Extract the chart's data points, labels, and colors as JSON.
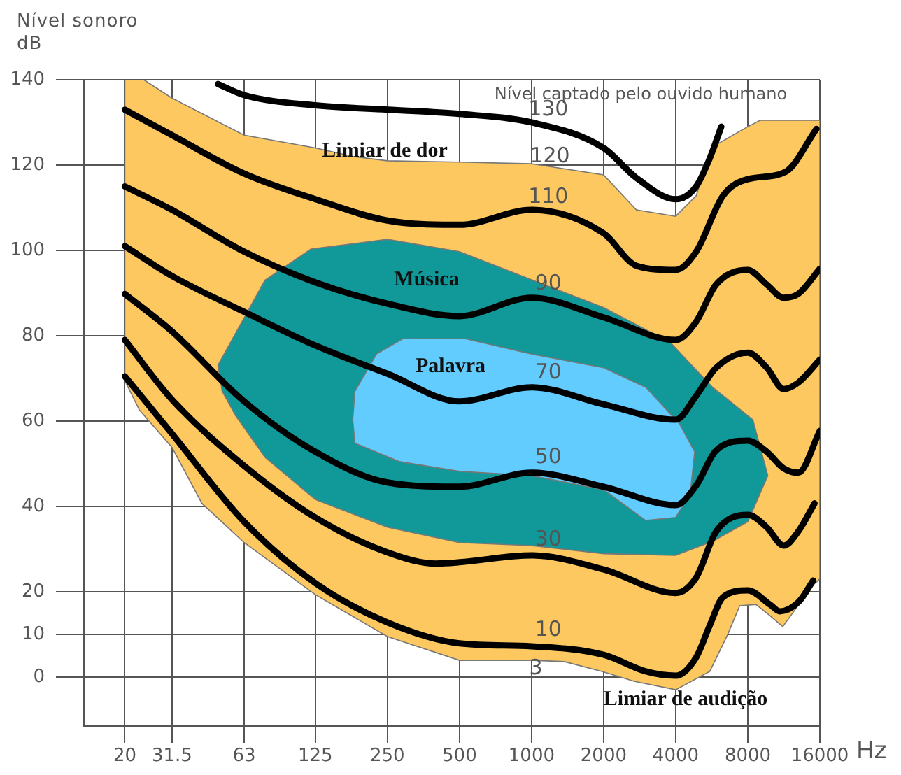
{
  "chart_data": {
    "type": "line",
    "xlabel": "Hz",
    "ylabel": "Nível sonoro dB",
    "log": "x",
    "grid": true,
    "legend": false,
    "xlim": [
      13.5,
      16000
    ],
    "xticks": [
      20,
      31.5,
      63,
      125,
      250,
      500,
      1000,
      2000,
      4000,
      8000,
      16000
    ],
    "ylim": [
      -11.5,
      140
    ],
    "yticks": [
      0,
      10,
      20,
      40,
      60,
      80,
      100,
      120,
      140
    ],
    "series": [
      {
        "type": "area",
        "color": "#fec861",
        "x": [
          20,
          24,
          31.5,
          63,
          125,
          180,
          250,
          500,
          1000,
          2000,
          2740,
          4000,
          4870,
          5350,
          6000,
          8000,
          9000,
          16000,
          16000,
          15000,
          11200,
          9900,
          8650,
          7400,
          6600,
          5550,
          4000,
          2680,
          1970,
          1370,
          1000,
          500,
          250,
          125,
          63,
          42,
          31.5,
          23,
          20,
          20
        ],
        "values": [
          140,
          140,
          135.7,
          127,
          124,
          122,
          121,
          120.7,
          120.3,
          117.7,
          109.5,
          108,
          112.8,
          120,
          125,
          129,
          130.5,
          130.5,
          23,
          21.6,
          11.8,
          14.4,
          17,
          16.7,
          10,
          1.3,
          -3,
          -1,
          1.3,
          3.6,
          3.9,
          3.9,
          9.5,
          19.3,
          31.5,
          40.7,
          53.8,
          62.6,
          69.5,
          140
        ]
      },
      {
        "type": "area",
        "color": "#11999a",
        "x": [
          49,
          77,
          120,
          250,
          500,
          1000,
          2000,
          3800,
          5700,
          8400,
          9700,
          8000,
          5700,
          4000,
          2000,
          1000,
          500,
          250,
          125,
          77,
          58,
          51,
          49
        ],
        "values": [
          73.1,
          93,
          100.3,
          102.6,
          99.7,
          93.1,
          86.6,
          78.4,
          67.9,
          60.3,
          47.2,
          36.4,
          31.8,
          28.5,
          28.9,
          30.8,
          31.5,
          35.1,
          41.6,
          51.5,
          61.3,
          67,
          73.1
        ]
      },
      {
        "type": "area",
        "color": "#63ccfe",
        "x": [
          179,
          183,
          225,
          290,
          530,
          1000,
          2000,
          3000,
          4150,
          4800,
          4600,
          4000,
          3000,
          2000,
          1000,
          500,
          280,
          183,
          179
        ],
        "values": [
          60.3,
          67,
          75.7,
          79.3,
          79.3,
          75.7,
          72.5,
          67.9,
          59.3,
          52.8,
          43,
          37.4,
          36.7,
          43.9,
          47.2,
          48.2,
          50.5,
          54.8,
          60.3
        ]
      },
      {
        "name": "130",
        "color": "#000000",
        "x": [
          49,
          63,
          125,
          250,
          500,
          1000,
          2000,
          2740,
          4000,
          4870,
          5550,
          6200
        ],
        "values": [
          139,
          136.4,
          134,
          133,
          132,
          130,
          124,
          117,
          112,
          115,
          121.6,
          129
        ]
      },
      {
        "name": "110",
        "color": "#000000",
        "x": [
          20,
          31.5,
          63,
          125,
          250,
          500,
          1000,
          2000,
          2740,
          4000,
          4870,
          6300,
          8000,
          11500,
          15500
        ],
        "values": [
          133,
          127,
          118,
          112,
          107,
          106,
          109.5,
          104,
          96.4,
          95.4,
          99.7,
          112.8,
          116.7,
          118.4,
          128.5
        ]
      },
      {
        "name": "90",
        "color": "#000000",
        "x": [
          20,
          31.5,
          63,
          125,
          250,
          500,
          1000,
          2000,
          4000,
          4870,
          5900,
          8000,
          9600,
          11300,
          13000,
          16000
        ],
        "values": [
          115,
          109.5,
          99.7,
          92.5,
          87.5,
          84.6,
          88.9,
          84.3,
          79,
          83.3,
          92,
          95.4,
          92,
          88.9,
          89.8,
          95.7
        ]
      },
      {
        "name": "70",
        "color": "#000000",
        "x": [
          20,
          31.5,
          63,
          125,
          250,
          500,
          1000,
          2000,
          4000,
          4870,
          5900,
          8000,
          9600,
          11300,
          13000,
          16000
        ],
        "values": [
          101,
          94,
          85.6,
          77.7,
          71.1,
          64.6,
          67.9,
          63.9,
          60.3,
          65.9,
          72.5,
          76,
          72.5,
          67.5,
          69,
          74.4
        ]
      },
      {
        "name": "50",
        "color": "#000000",
        "x": [
          20,
          31.5,
          63,
          125,
          250,
          500,
          1000,
          2000,
          4000,
          4870,
          5900,
          8000,
          9600,
          11300,
          13000,
          16000
        ],
        "values": [
          89.8,
          81,
          64.6,
          52.8,
          45.6,
          44.6,
          47.9,
          44.6,
          40.3,
          44.9,
          53.1,
          55.4,
          52.8,
          48.9,
          47.9,
          57.7
        ]
      },
      {
        "name": "30",
        "color": "#000000",
        "x": [
          20,
          31.5,
          63,
          125,
          250,
          400,
          500,
          1000,
          2000,
          4000,
          4870,
          5900,
          8000,
          9600,
          11300,
          13000,
          15200
        ],
        "values": [
          79,
          65,
          49.5,
          37.4,
          29.2,
          26.6,
          26.9,
          28.5,
          25.2,
          19.7,
          23.3,
          34.1,
          38,
          35.1,
          30.8,
          34.1,
          40.7
        ]
      },
      {
        "name": "10",
        "color": "#000000",
        "x": [
          20,
          31.5,
          63,
          125,
          250,
          500,
          1000,
          2000,
          3000,
          4000,
          4870,
          5550,
          6300,
          8000,
          9900,
          10900,
          13100,
          15000
        ],
        "values": [
          70.5,
          57,
          36.4,
          22,
          12.8,
          7.9,
          7.2,
          5.2,
          1.3,
          0.3,
          4.6,
          12.1,
          18.7,
          20.3,
          17,
          15.4,
          17.7,
          22.6
        ]
      }
    ],
    "annotations": [
      "Nível captado pelo ouvido humano",
      "Limiar de dor",
      "Música",
      "Palavra",
      "Limiar de audição",
      "120",
      "3"
    ]
  }
}
